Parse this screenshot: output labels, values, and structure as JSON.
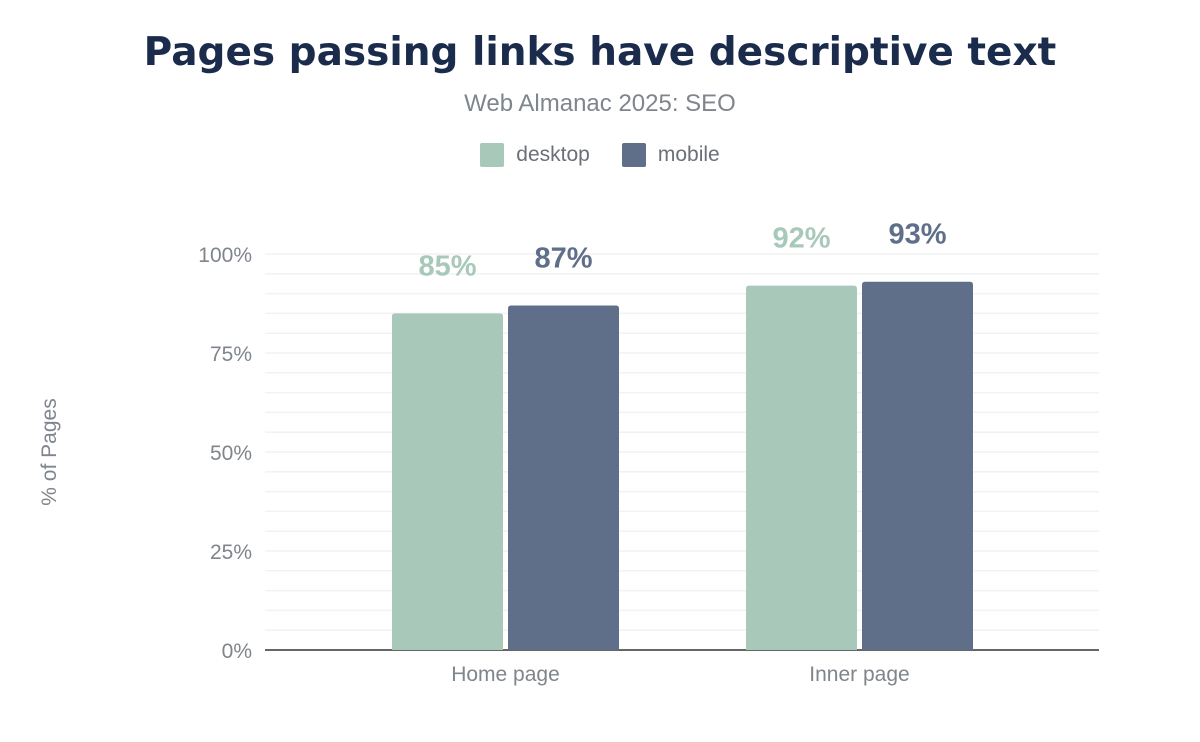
{
  "chart_data": {
    "type": "bar",
    "title": "Pages passing links have descriptive text",
    "subtitle": "Web Almanac 2025: SEO",
    "xlabel": "",
    "ylabel": "% of Pages",
    "ylim": [
      0,
      100
    ],
    "yticks": [
      "0%",
      "25%",
      "50%",
      "75%",
      "100%"
    ],
    "ytick_values": [
      0,
      25,
      50,
      75,
      100
    ],
    "grid": true,
    "legend_position": "top",
    "categories": [
      "Home page",
      "Inner page"
    ],
    "series": [
      {
        "name": "desktop",
        "color": "#a8c8b9",
        "values": [
          85,
          92
        ],
        "labels": [
          "85%",
          "92%"
        ]
      },
      {
        "name": "mobile",
        "color": "#5f6f8a",
        "values": [
          87,
          93
        ],
        "labels": [
          "87%",
          "93%"
        ]
      }
    ]
  }
}
